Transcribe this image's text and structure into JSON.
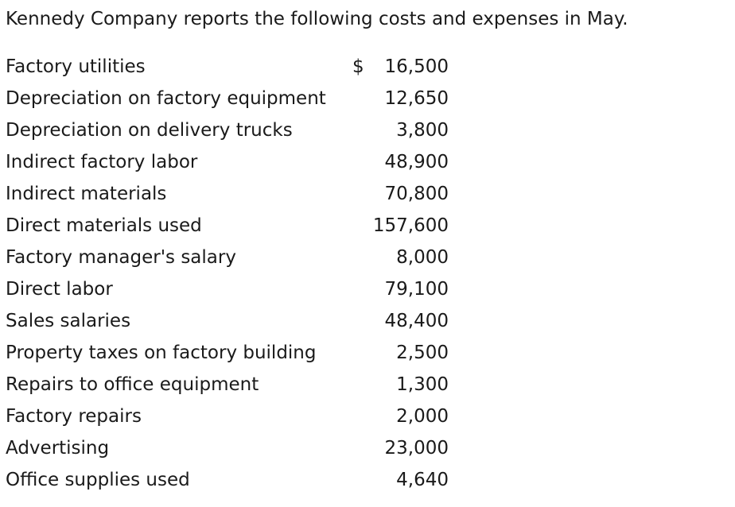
{
  "intro": "Kennedy Company reports the following costs and expenses in May.",
  "currency_symbol": "$",
  "items": [
    {
      "label": "Factory utilities",
      "amount": "16,500"
    },
    {
      "label": "Depreciation on factory equipment",
      "amount": "12,650"
    },
    {
      "label": "Depreciation on delivery trucks",
      "amount": "3,800"
    },
    {
      "label": "Indirect factory labor",
      "amount": "48,900"
    },
    {
      "label": "Indirect materials",
      "amount": "70,800"
    },
    {
      "label": "Direct materials used",
      "amount": "157,600"
    },
    {
      "label": "Factory manager's salary",
      "amount": "8,000"
    },
    {
      "label": "Direct labor",
      "amount": "79,100"
    },
    {
      "label": "Sales salaries",
      "amount": "48,400"
    },
    {
      "label": "Property taxes on factory building",
      "amount": "2,500"
    },
    {
      "label": "Repairs to office equipment",
      "amount": "1,300"
    },
    {
      "label": "Factory repairs",
      "amount": "2,000"
    },
    {
      "label": "Advertising",
      "amount": "23,000"
    },
    {
      "label": "Office supplies used",
      "amount": "4,640"
    }
  ]
}
